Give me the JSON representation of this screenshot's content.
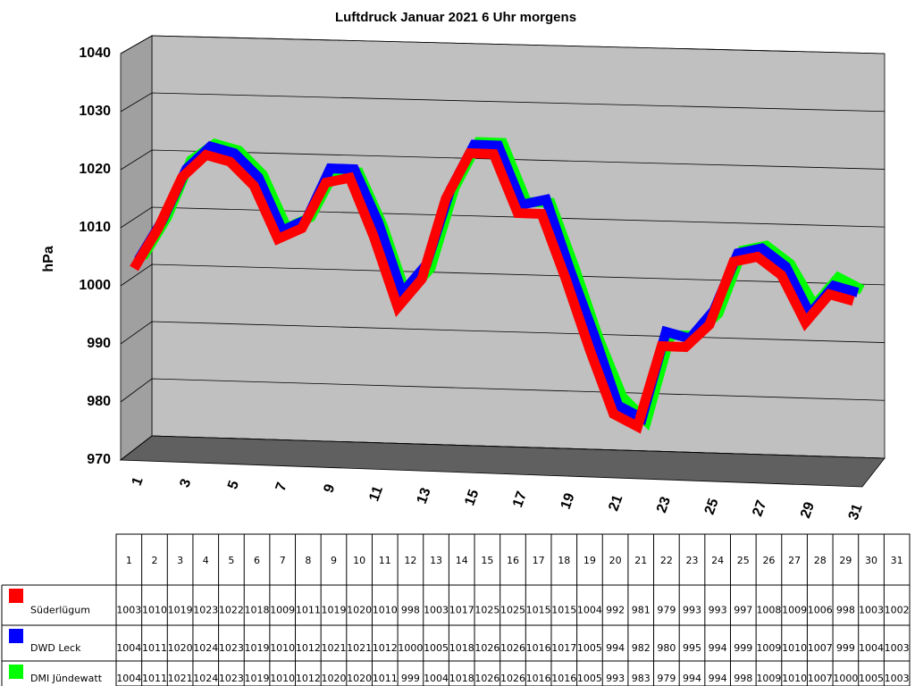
{
  "chart_data": {
    "type": "line",
    "title": "Luftdruck Januar 2021 6 Uhr morgens",
    "y_label": "hPa",
    "categories": [
      "1",
      "2",
      "3",
      "4",
      "5",
      "6",
      "7",
      "8",
      "9",
      "10",
      "11",
      "12",
      "13",
      "14",
      "15",
      "16",
      "17",
      "18",
      "19",
      "20",
      "21",
      "22",
      "23",
      "24",
      "25",
      "26",
      "27",
      "28",
      "29",
      "30",
      "31"
    ],
    "series": [
      {
        "name": "Süderlügum",
        "color": "#ff0000",
        "values": [
          1003,
          1010,
          1019,
          1023,
          1022,
          1018,
          1009,
          1011,
          1019,
          1020,
          1010,
          998,
          1003,
          1017,
          1025,
          1025,
          1015,
          1015,
          1004,
          992,
          981,
          979,
          993,
          993,
          997,
          1008,
          1009,
          1006,
          998,
          1003,
          1002
        ]
      },
      {
        "name": "DWD Leck",
        "color": "#0000ff",
        "values": [
          1004,
          1011,
          1020,
          1024,
          1023,
          1019,
          1010,
          1012,
          1021,
          1021,
          1012,
          1000,
          1005,
          1018,
          1026,
          1026,
          1016,
          1017,
          1005,
          994,
          982,
          980,
          995,
          994,
          999,
          1009,
          1010,
          1007,
          999,
          1004,
          1003
        ]
      },
      {
        "name": "DMI Jündewatt",
        "color": "#00ff00",
        "values": [
          1004,
          1011,
          1021,
          1024,
          1023,
          1019,
          1010,
          1012,
          1020,
          1020,
          1011,
          999,
          1004,
          1018,
          1026,
          1026,
          1016,
          1016,
          1005,
          993,
          983,
          979,
          994,
          994,
          998,
          1009,
          1010,
          1007,
          1000,
          1005,
          1003
        ]
      }
    ],
    "ylim": [
      970,
      1040
    ],
    "yticks": [
      970,
      980,
      990,
      1000,
      1010,
      1020,
      1030,
      1040
    ],
    "grid": true
  }
}
